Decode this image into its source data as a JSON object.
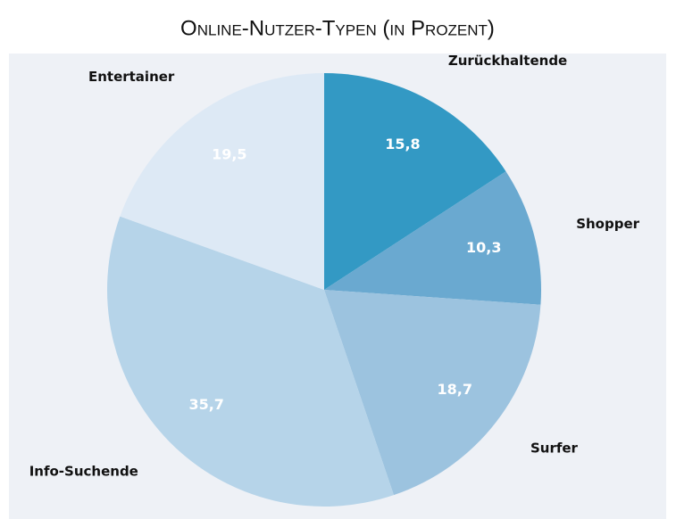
{
  "chart_data": {
    "type": "pie",
    "title": "Online-Nutzer-Typen (in Prozent)",
    "categories": [
      "Zurückhaltende",
      "Shopper",
      "Surfer",
      "Info-Suchende",
      "Entertainer"
    ],
    "values": [
      15.8,
      10.3,
      18.7,
      35.7,
      19.5
    ],
    "value_labels": [
      "15,8",
      "10,3",
      "18,7",
      "35,7",
      "19,5"
    ],
    "colors": [
      "#3399c4",
      "#6aa9d0",
      "#9cc3df",
      "#b6d4e9",
      "#dde9f5"
    ]
  }
}
